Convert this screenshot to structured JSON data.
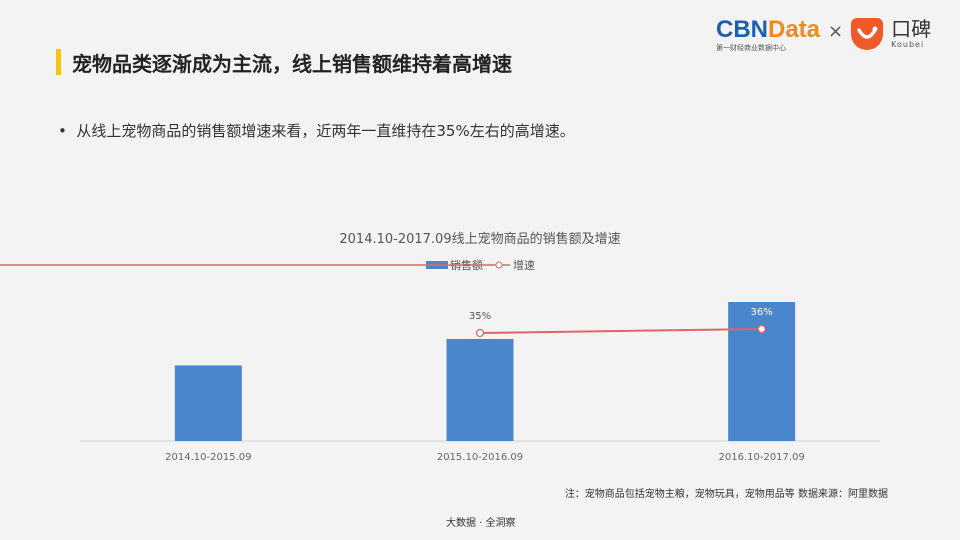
{
  "slide": {
    "title": "宠物品类逐渐成为主流，线上销售额维持着高增速",
    "bullet": "从线上宠物商品的销售额增速来看，近两年一直维持在35%左右的高增速。",
    "note": "注：宠物商品包括宠物主粮，宠物玩具，宠物用品等  数据来源：阿里数据",
    "footer": "大数据 · 全洞察",
    "accent_color": "#f5c21b"
  },
  "logo": {
    "cbn_part1": "CBN",
    "cbn_part2": "Data",
    "cbn_sub": "第一财经商业数据中心",
    "times": "×",
    "koubei_cn": "口碑",
    "koubei_en": "Koubei"
  },
  "chart_data": {
    "type": "bar+line",
    "title": "2014.10-2017.09线上宠物商品的销售额及增速",
    "categories": [
      "2014.10-2015.09",
      "2015.10-2016.09",
      "2016.10-2017.09"
    ],
    "series": [
      {
        "name": "销售额",
        "type": "bar",
        "values": [
          1.0,
          1.35,
          1.84
        ],
        "color": "#4a86cc"
      },
      {
        "name": "增速",
        "type": "line",
        "values": [
          null,
          35,
          36
        ],
        "labels": [
          "",
          "35%",
          "36%"
        ],
        "color": "#e06666"
      }
    ],
    "legend": "top-center",
    "grid": false
  }
}
